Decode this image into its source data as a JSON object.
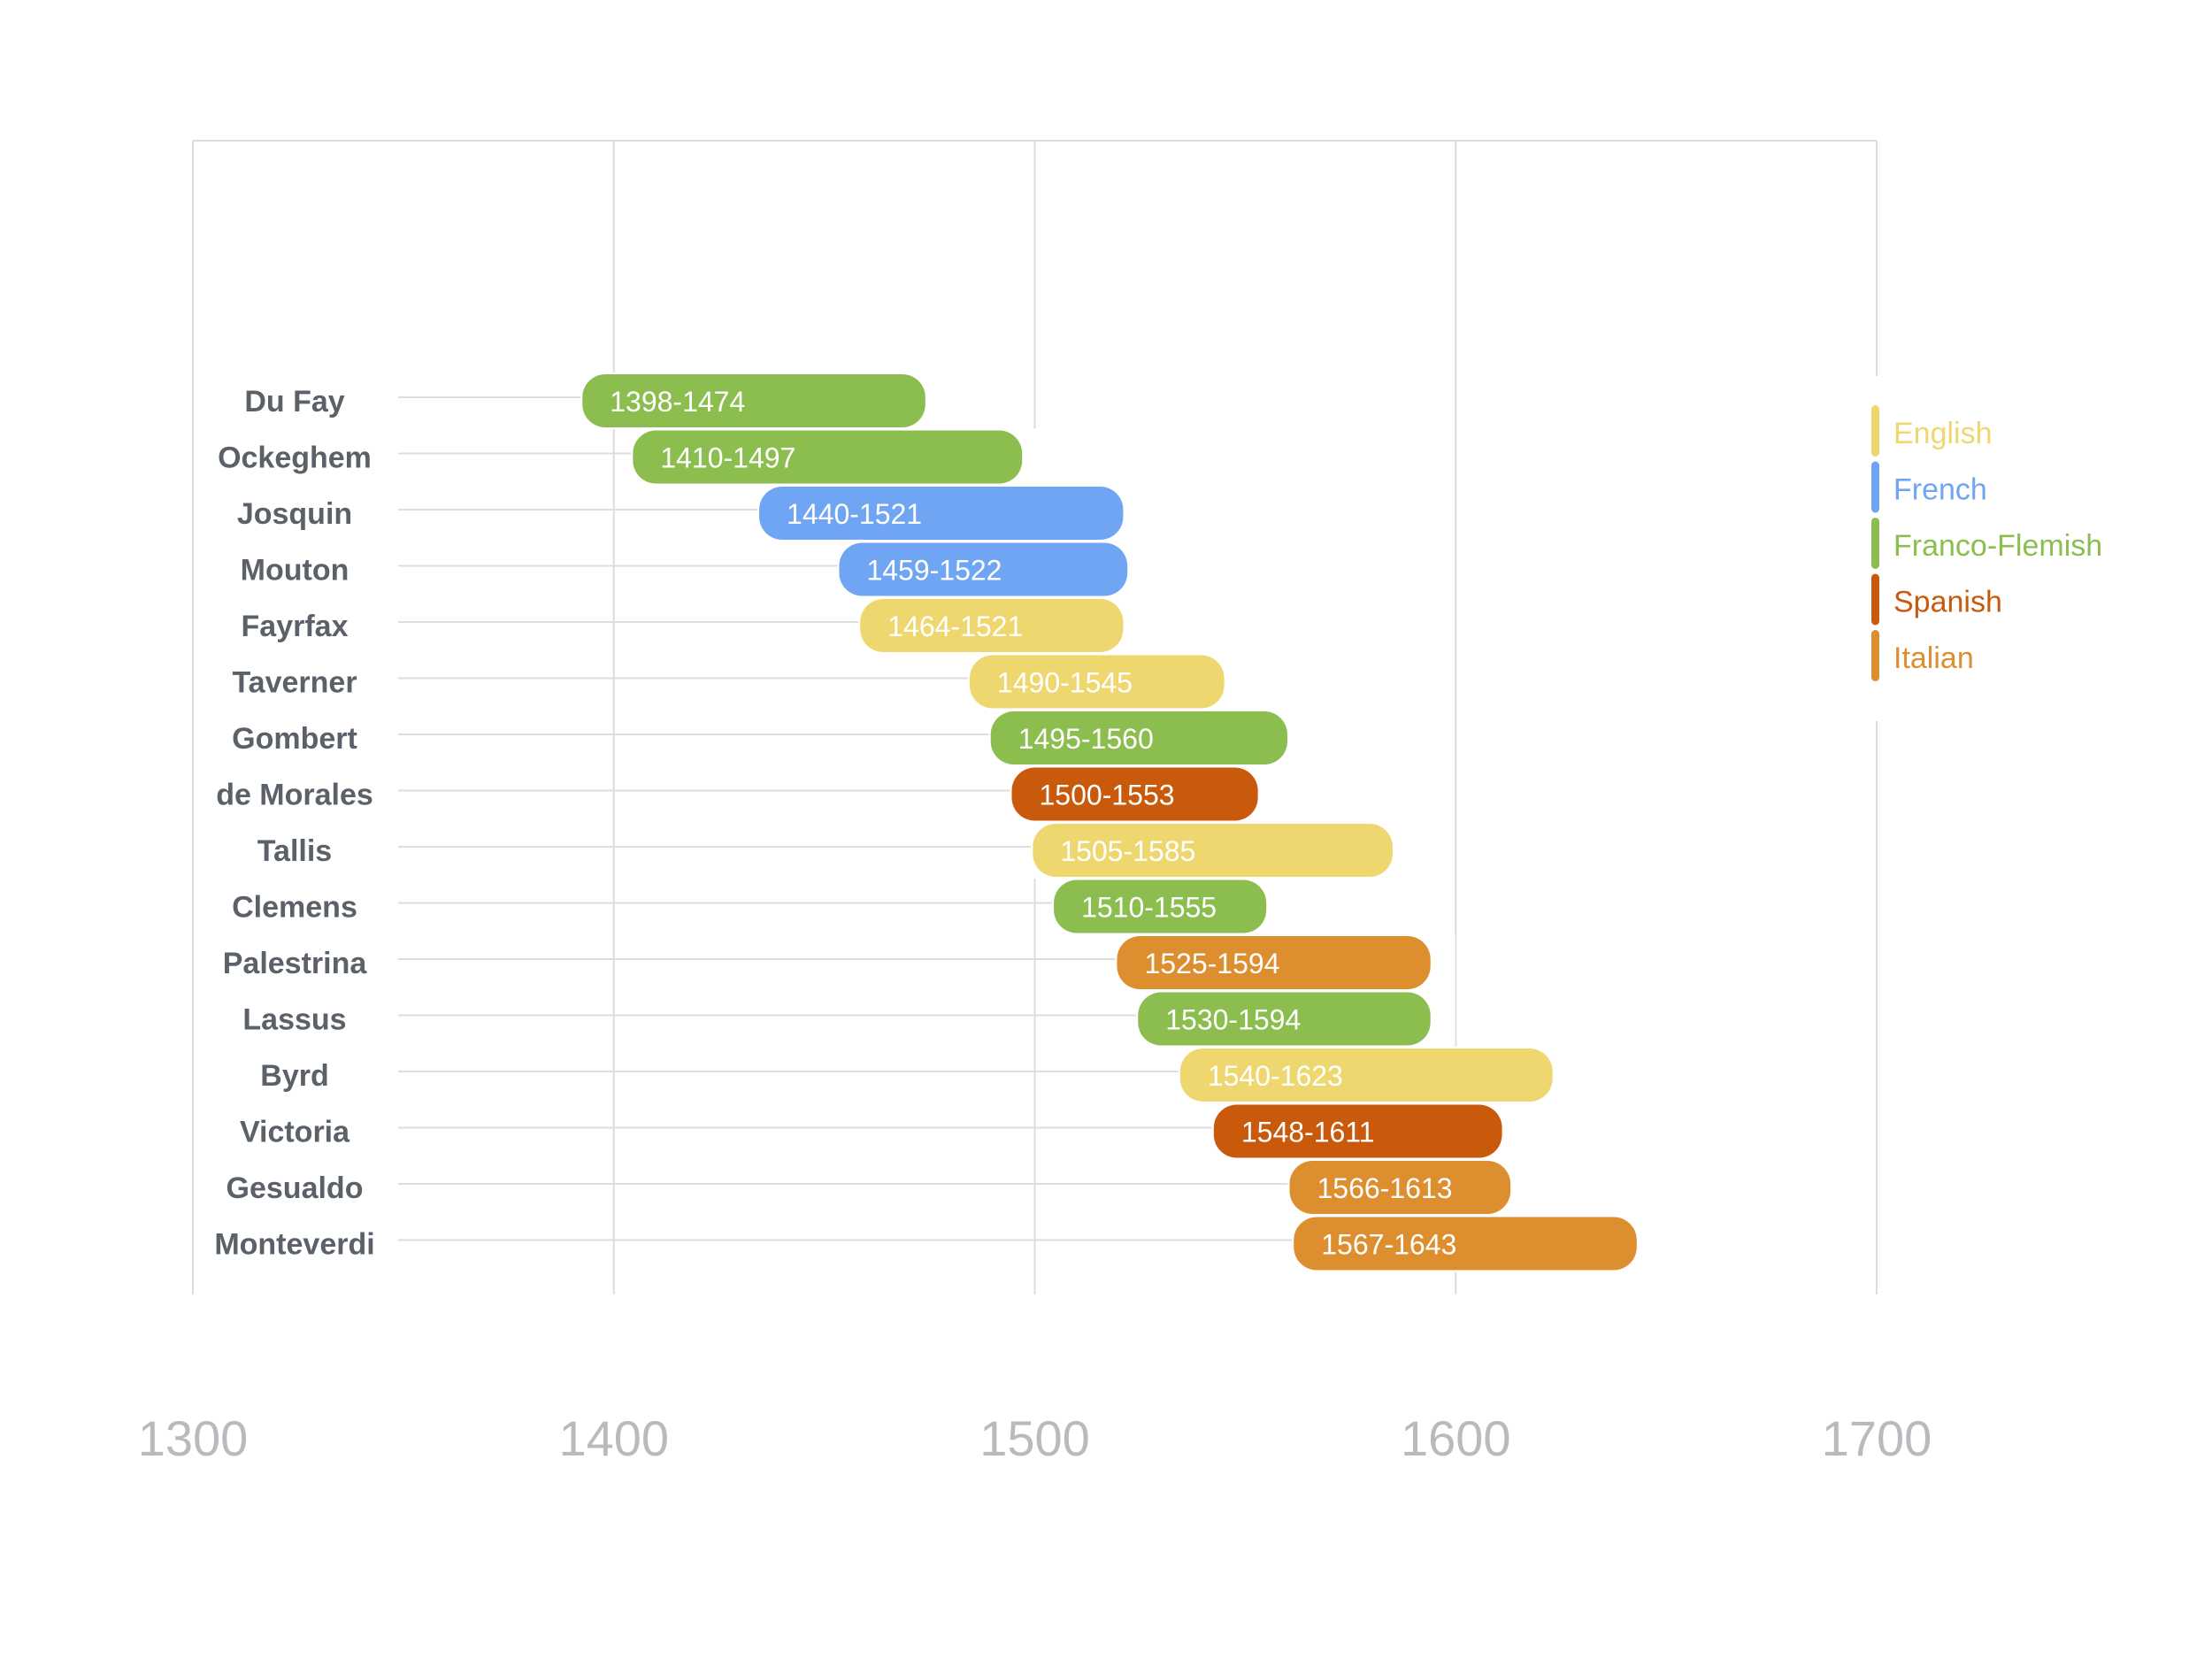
{
  "chart_data": {
    "type": "bar",
    "orientation": "horizontal-range",
    "xlim": [
      1300,
      1700
    ],
    "xticks": [
      1300,
      1400,
      1500,
      1600,
      1700
    ],
    "grid": true,
    "legend_position": "right",
    "categories": [
      "Du Fay",
      "Ockeghem",
      "Josquin",
      "Mouton",
      "Fayrfax",
      "Taverner",
      "Gombert",
      "de Morales",
      "Tallis",
      "Clemens",
      "Palestrina",
      "Lassus",
      "Byrd",
      "Victoria",
      "Gesualdo",
      "Monteverdi"
    ],
    "bars": [
      {
        "name": "Du Fay",
        "start": 1398,
        "end": 1474,
        "label": "1398-1474",
        "group": "Franco-Flemish"
      },
      {
        "name": "Ockeghem",
        "start": 1410,
        "end": 1497,
        "label": "1410-1497",
        "group": "Franco-Flemish"
      },
      {
        "name": "Josquin",
        "start": 1440,
        "end": 1521,
        "label": "1440-1521",
        "group": "French"
      },
      {
        "name": "Mouton",
        "start": 1459,
        "end": 1522,
        "label": "1459-1522",
        "group": "French"
      },
      {
        "name": "Fayrfax",
        "start": 1464,
        "end": 1521,
        "label": "1464-1521",
        "group": "English"
      },
      {
        "name": "Taverner",
        "start": 1490,
        "end": 1545,
        "label": "1490-1545",
        "group": "English"
      },
      {
        "name": "Gombert",
        "start": 1495,
        "end": 1560,
        "label": "1495-1560",
        "group": "Franco-Flemish"
      },
      {
        "name": "de Morales",
        "start": 1500,
        "end": 1553,
        "label": "1500-1553",
        "group": "Spanish"
      },
      {
        "name": "Tallis",
        "start": 1505,
        "end": 1585,
        "label": "1505-1585",
        "group": "English"
      },
      {
        "name": "Clemens",
        "start": 1510,
        "end": 1555,
        "label": "1510-1555",
        "group": "Franco-Flemish"
      },
      {
        "name": "Palestrina",
        "start": 1525,
        "end": 1594,
        "label": "1525-1594",
        "group": "Italian"
      },
      {
        "name": "Lassus",
        "start": 1530,
        "end": 1594,
        "label": "1530-1594",
        "group": "Franco-Flemish"
      },
      {
        "name": "Byrd",
        "start": 1540,
        "end": 1623,
        "label": "1540-1623",
        "group": "English"
      },
      {
        "name": "Victoria",
        "start": 1548,
        "end": 1611,
        "label": "1548-1611",
        "group": "Spanish"
      },
      {
        "name": "Gesualdo",
        "start": 1566,
        "end": 1613,
        "label": "1566-1613",
        "group": "Italian"
      },
      {
        "name": "Monteverdi",
        "start": 1567,
        "end": 1643,
        "label": "1567-1643",
        "group": "Italian"
      }
    ],
    "legend": [
      {
        "name": "English",
        "color": "#efd770"
      },
      {
        "name": "French",
        "color": "#6fa5f2"
      },
      {
        "name": "Franco-Flemish",
        "color": "#8bbe4f"
      },
      {
        "name": "Spanish",
        "color": "#c95a0c"
      },
      {
        "name": "Italian",
        "color": "#dd8e2e"
      }
    ]
  }
}
